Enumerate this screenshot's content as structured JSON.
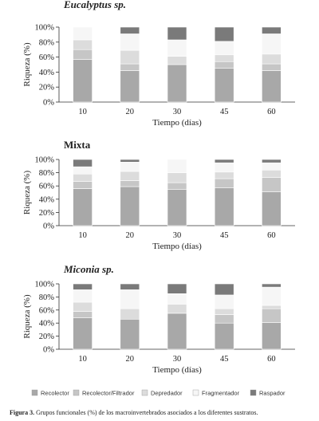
{
  "chart_data": [
    {
      "type": "bar",
      "stacked": true,
      "title": "Eucalyptus sp.",
      "title_italic": true,
      "xlabel": "Tiempo (días)",
      "ylabel": "Riqueza (%)",
      "ylim": [
        0,
        100
      ],
      "yticks": [
        "0%",
        "20%",
        "40%",
        "60%",
        "80%",
        "100%"
      ],
      "categories": [
        "10",
        "20",
        "30",
        "45",
        "60"
      ],
      "series": [
        {
          "name": "Recolector",
          "values": [
            57,
            42,
            50,
            45,
            42
          ]
        },
        {
          "name": "Recolector/Filtrador",
          "values": [
            13,
            9,
            0,
            9,
            9
          ]
        },
        {
          "name": "Depredador",
          "values": [
            13,
            18,
            11,
            9,
            13
          ]
        },
        {
          "name": "Fragmentador",
          "values": [
            17,
            22,
            22,
            18,
            27
          ]
        },
        {
          "name": "Raspador",
          "values": [
            0,
            9,
            17,
            19,
            9
          ]
        }
      ]
    },
    {
      "type": "bar",
      "stacked": true,
      "title": "Mixta",
      "title_italic": false,
      "xlabel": "Tiempo (días)",
      "ylabel": "Riqueza (%)",
      "ylim": [
        0,
        100
      ],
      "yticks": [
        "0%",
        "20%",
        "40%",
        "60%",
        "80%",
        "100%"
      ],
      "categories": [
        "10",
        "20",
        "30",
        "45",
        "60"
      ],
      "series": [
        {
          "name": "Recolector",
          "values": [
            56,
            59,
            55,
            57,
            51
          ]
        },
        {
          "name": "Recolector/Filtrador",
          "values": [
            11,
            9,
            10,
            14,
            22
          ]
        },
        {
          "name": "Depredador",
          "values": [
            11,
            14,
            15,
            10,
            11
          ]
        },
        {
          "name": "Fragmentador",
          "values": [
            11,
            14,
            20,
            14,
            11
          ]
        },
        {
          "name": "Raspador",
          "values": [
            11,
            4,
            0,
            5,
            5
          ]
        }
      ]
    },
    {
      "type": "bar",
      "stacked": true,
      "title": "Miconia sp.",
      "title_italic": true,
      "xlabel": "Tiempo (días)",
      "ylabel": "Riqueza (%)",
      "ylim": [
        0,
        100
      ],
      "yticks": [
        "0%",
        "20%",
        "40%",
        "60%",
        "80%",
        "100%"
      ],
      "categories": [
        "10",
        "20",
        "30",
        "45",
        "60"
      ],
      "series": [
        {
          "name": "Recolector",
          "values": [
            48,
            46,
            55,
            40,
            41
          ]
        },
        {
          "name": "Recolector/Filtrador",
          "values": [
            10,
            0,
            0,
            13,
            21
          ]
        },
        {
          "name": "Depredador",
          "values": [
            14,
            16,
            14,
            9,
            5
          ]
        },
        {
          "name": "Fragmentador",
          "values": [
            19,
            29,
            16,
            21,
            28
          ]
        },
        {
          "name": "Raspador",
          "values": [
            9,
            9,
            15,
            17,
            5
          ]
        }
      ]
    }
  ],
  "legend": {
    "placement": "bottom",
    "items": [
      {
        "label": "Recolector",
        "color": "#a8a8a8"
      },
      {
        "label": "Recolector/Filtrador",
        "color": "#c6c6c6"
      },
      {
        "label": "Depredador",
        "color": "#dcdcdc"
      },
      {
        "label": "Fragmentador",
        "color": "#f6f6f6"
      },
      {
        "label": "Raspador",
        "color": "#7a7a7a"
      }
    ]
  },
  "caption": {
    "label": "Figura 3.",
    "text": " Grupos funcionales (%) de los macroinvertebrados asociados a los diferentes sustratos."
  }
}
